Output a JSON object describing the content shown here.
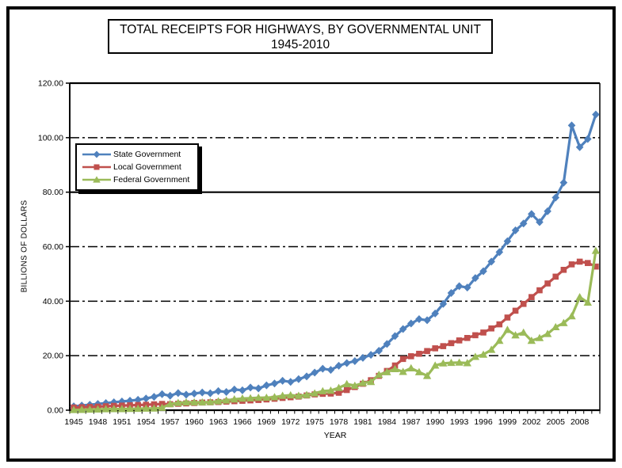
{
  "title": {
    "line1": "TOTAL RECEIPTS FOR HIGHWAYS, BY GOVERNMENTAL UNIT",
    "line2": "1945-2010"
  },
  "chart_data": {
    "type": "line",
    "title": "TOTAL RECEIPTS FOR HIGHWAYS, BY GOVERNMENTAL UNIT 1945-2010",
    "xlabel": "YEAR",
    "ylabel": "BILLIONS OF DOLLARS",
    "ylim": [
      0,
      120
    ],
    "ytick_interval": 20,
    "ytick_format_decimals": 2,
    "x_label_interval": 3,
    "grid": "horizontal",
    "legend_position": "upper-left-inside",
    "x": [
      1945,
      1946,
      1947,
      1948,
      1949,
      1950,
      1951,
      1952,
      1953,
      1954,
      1955,
      1956,
      1957,
      1958,
      1959,
      1960,
      1961,
      1962,
      1963,
      1964,
      1965,
      1966,
      1967,
      1968,
      1969,
      1970,
      1971,
      1972,
      1973,
      1974,
      1975,
      1976,
      1977,
      1978,
      1979,
      1980,
      1981,
      1982,
      1983,
      1984,
      1985,
      1986,
      1987,
      1988,
      1989,
      1990,
      1991,
      1992,
      1993,
      1994,
      1995,
      1996,
      1997,
      1998,
      1999,
      2000,
      2001,
      2002,
      2003,
      2004,
      2005,
      2006,
      2007,
      2008,
      2009,
      2010
    ],
    "series": [
      {
        "name": "State Government",
        "color": "#4F81BD",
        "marker": "diamond",
        "values": [
          1.4,
          1.7,
          2.0,
          2.3,
          2.6,
          2.9,
          3.2,
          3.5,
          3.8,
          4.3,
          4.9,
          5.9,
          5.3,
          6.3,
          5.7,
          6.1,
          6.5,
          6.2,
          7.0,
          6.7,
          7.6,
          7.3,
          8.3,
          8.0,
          9.1,
          9.8,
          10.8,
          10.4,
          11.4,
          12.4,
          13.8,
          15.2,
          14.8,
          16.3,
          17.3,
          18.0,
          19.2,
          20.3,
          21.8,
          24.3,
          27.2,
          29.8,
          31.8,
          33.4,
          33.0,
          35.5,
          39.0,
          43.0,
          45.5,
          45.0,
          48.5,
          51.0,
          54.5,
          58.0,
          62.0,
          66.0,
          68.5,
          72.0,
          69.0,
          73.0,
          78.0,
          83.5,
          104.5,
          96.5,
          99.5,
          108.5
        ]
      },
      {
        "name": "Local Government",
        "color": "#C0504D",
        "marker": "square",
        "values": [
          1.0,
          1.1,
          1.2,
          1.3,
          1.45,
          1.6,
          1.7,
          1.8,
          1.9,
          2.0,
          2.15,
          2.3,
          2.2,
          2.35,
          2.5,
          2.65,
          2.8,
          2.9,
          3.0,
          3.15,
          3.3,
          3.45,
          3.6,
          3.75,
          3.95,
          4.2,
          4.5,
          4.75,
          5.0,
          5.4,
          5.8,
          6.0,
          6.1,
          6.4,
          7.4,
          8.5,
          9.7,
          11.0,
          12.6,
          14.4,
          16.4,
          18.8,
          19.8,
          20.7,
          21.7,
          22.7,
          23.5,
          24.6,
          25.6,
          26.5,
          27.5,
          28.5,
          30.0,
          31.5,
          34.0,
          36.5,
          39.0,
          41.5,
          44.0,
          46.5,
          49.0,
          51.5,
          53.5,
          54.5,
          54.0,
          52.7
        ]
      },
      {
        "name": "Federal Government",
        "color": "#9BBB59",
        "marker": "triangle",
        "values": [
          0.1,
          0.15,
          0.25,
          0.3,
          0.4,
          0.45,
          0.45,
          0.5,
          0.55,
          0.6,
          0.65,
          0.9,
          2.3,
          2.7,
          2.9,
          2.9,
          2.9,
          3.0,
          3.3,
          3.6,
          4.0,
          4.3,
          4.4,
          4.6,
          4.6,
          4.8,
          5.3,
          5.5,
          5.3,
          5.6,
          6.2,
          7.0,
          7.2,
          8.2,
          9.6,
          9.0,
          10.0,
          10.4,
          13.0,
          14.0,
          15.1,
          14.1,
          15.4,
          14.0,
          12.6,
          16.4,
          17.2,
          17.4,
          17.5,
          17.3,
          19.6,
          20.4,
          22.2,
          25.5,
          29.5,
          27.5,
          28.5,
          25.5,
          26.5,
          28.0,
          30.5,
          32.0,
          34.5,
          41.5,
          39.5,
          58.5
        ]
      }
    ]
  }
}
